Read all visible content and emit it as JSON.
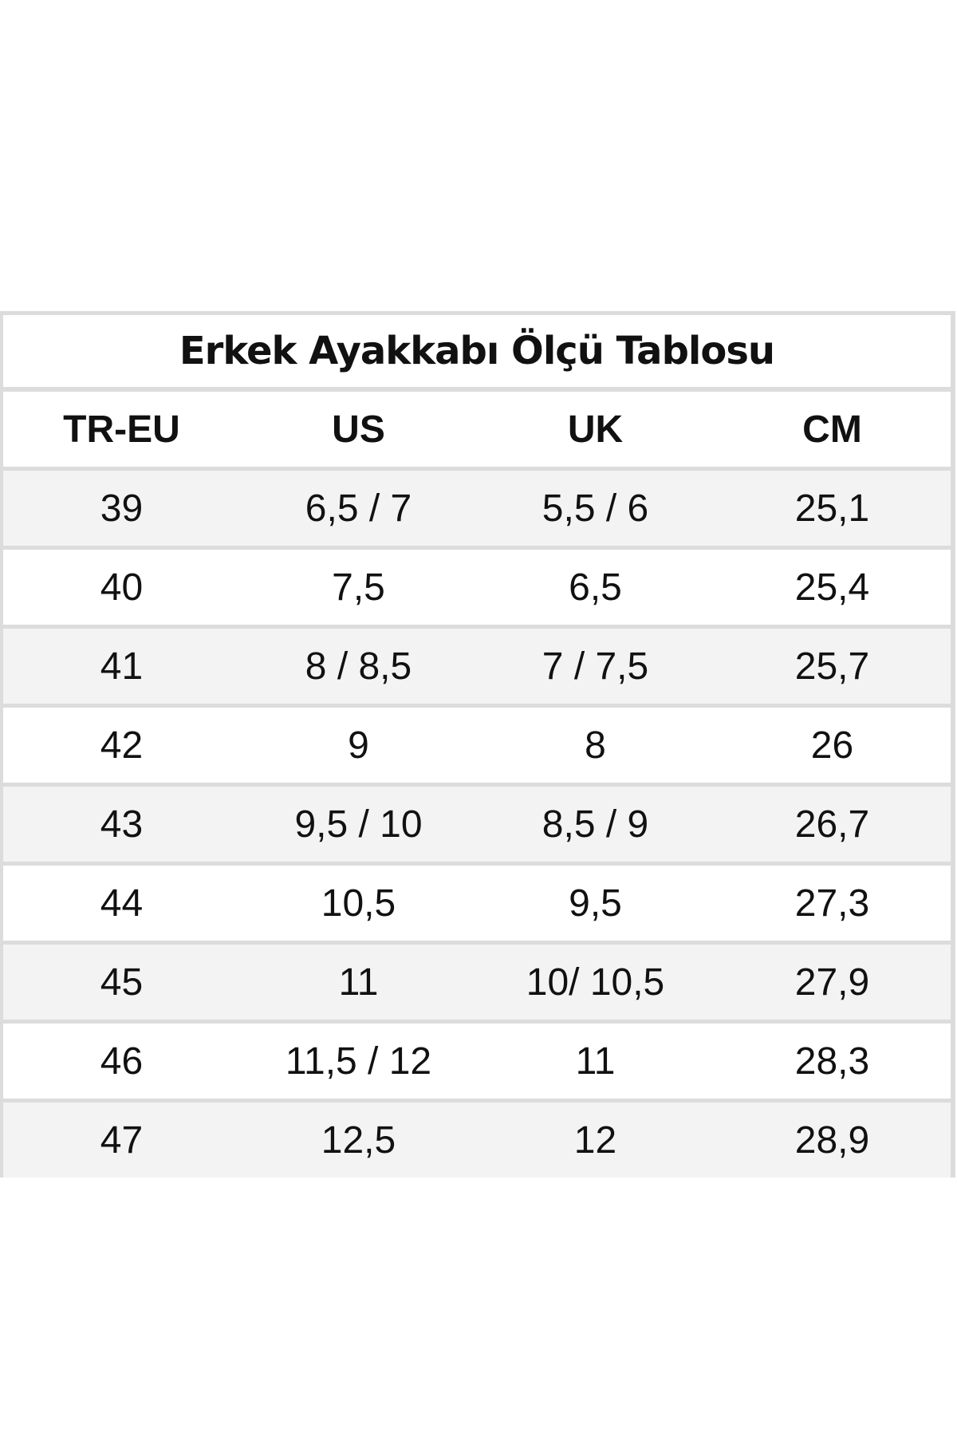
{
  "title": "Erkek Ayakkabı Ölçü Tablosu",
  "columns": [
    "TR-EU",
    "US",
    "UK",
    "CM"
  ],
  "rows": [
    [
      "39",
      "6,5 / 7",
      "5,5 / 6",
      "25,1"
    ],
    [
      "40",
      "7,5",
      "6,5",
      "25,4"
    ],
    [
      "41",
      "8 / 8,5",
      "7 / 7,5",
      "25,7"
    ],
    [
      "42",
      "9",
      "8",
      "26"
    ],
    [
      "43",
      "9,5 / 10",
      "8,5 / 9",
      "26,7"
    ],
    [
      "44",
      "10,5",
      "9,5",
      "27,3"
    ],
    [
      "45",
      "11",
      "10/ 10,5",
      "27,9"
    ],
    [
      "46",
      "11,5 / 12",
      "11",
      "28,3"
    ],
    [
      "47",
      "12,5",
      "12",
      "28,9"
    ]
  ]
}
